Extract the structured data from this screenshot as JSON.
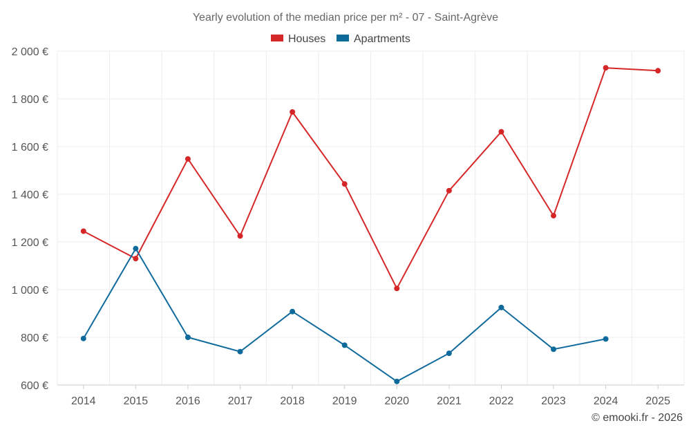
{
  "chart_data": {
    "type": "line",
    "title": "Yearly evolution of the median price per m² - 07 - Saint-Agrève",
    "categories": [
      "2014",
      "2015",
      "2016",
      "2017",
      "2018",
      "2019",
      "2020",
      "2021",
      "2022",
      "2023",
      "2024",
      "2025"
    ],
    "ylim": [
      600,
      2000
    ],
    "yticks": [
      600,
      800,
      1000,
      1200,
      1400,
      1600,
      1800,
      2000
    ],
    "ytick_labels": [
      "600 €",
      "800 €",
      "1 000 €",
      "1 200 €",
      "1 400 €",
      "1 600 €",
      "1 800 €",
      "2 000 €"
    ],
    "grid": true,
    "legend_position": "top-center",
    "series": [
      {
        "name": "Houses",
        "color": "#d62728",
        "values": [
          1245,
          1130,
          1548,
          1225,
          1745,
          1443,
          1005,
          1415,
          1662,
          1310,
          1930,
          1918
        ]
      },
      {
        "name": "Apartments",
        "color": "#0f6a9c",
        "values": [
          795,
          1172,
          800,
          740,
          908,
          767,
          615,
          733,
          925,
          750,
          793,
          null
        ]
      }
    ],
    "credit": "© emooki.fr - 2026"
  }
}
